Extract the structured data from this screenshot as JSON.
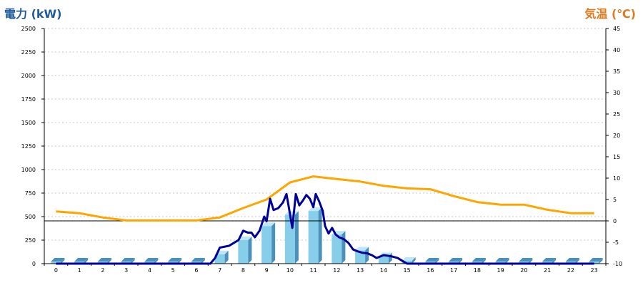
{
  "titles": {
    "left": "電力 (kW)",
    "right": "気温 (℃)"
  },
  "colors": {
    "left_title": "#1f5a99",
    "right_title": "#e07a1f",
    "bar": "#87ceeb",
    "bar_side": "#4a90b8",
    "bar_top": "#bfe6f7",
    "power_line": "#000099",
    "temp_line": "#ffa500",
    "grid": "#c8c8c8",
    "ref_line": "#000000"
  },
  "chart_data": {
    "type": "bar",
    "categories": [
      "0",
      "1",
      "2",
      "3",
      "4",
      "5",
      "6",
      "7",
      "8",
      "9",
      "10",
      "11",
      "12",
      "13",
      "14",
      "15",
      "16",
      "17",
      "18",
      "19",
      "20",
      "21",
      "22",
      "23"
    ],
    "left_axis": {
      "min": 0,
      "max": 2500,
      "ticks": [
        0,
        250,
        500,
        750,
        1000,
        1250,
        1500,
        1750,
        2000,
        2250,
        2500
      ]
    },
    "right_axis": {
      "min": -10,
      "max": 45,
      "ticks": [
        -10,
        -5,
        0,
        5,
        10,
        15,
        20,
        25,
        30,
        35,
        40,
        45
      ]
    },
    "grid": "horizontal-dotted",
    "reference_line_temp": 0,
    "bars": {
      "axis": "left",
      "values": [
        0,
        0,
        0,
        0,
        0,
        0,
        0,
        100,
        250,
        400,
        520,
        560,
        310,
        140,
        80,
        30,
        0,
        0,
        0,
        0,
        0,
        0,
        0,
        0
      ]
    },
    "power_line": {
      "axis": "left",
      "points": [
        [
          0,
          0
        ],
        [
          1,
          0
        ],
        [
          2,
          0
        ],
        [
          3,
          0
        ],
        [
          4,
          0
        ],
        [
          5,
          0
        ],
        [
          6,
          0
        ],
        [
          6.6,
          0
        ],
        [
          6.8,
          60
        ],
        [
          7.0,
          170
        ],
        [
          7.2,
          180
        ],
        [
          7.4,
          190
        ],
        [
          7.6,
          220
        ],
        [
          7.8,
          250
        ],
        [
          8.0,
          350
        ],
        [
          8.2,
          330
        ],
        [
          8.35,
          330
        ],
        [
          8.5,
          280
        ],
        [
          8.7,
          350
        ],
        [
          8.9,
          500
        ],
        [
          9.0,
          450
        ],
        [
          9.15,
          690
        ],
        [
          9.3,
          570
        ],
        [
          9.5,
          590
        ],
        [
          9.7,
          650
        ],
        [
          9.85,
          740
        ],
        [
          9.95,
          600
        ],
        [
          10.1,
          380
        ],
        [
          10.25,
          740
        ],
        [
          10.4,
          620
        ],
        [
          10.55,
          670
        ],
        [
          10.7,
          730
        ],
        [
          10.85,
          690
        ],
        [
          11.0,
          600
        ],
        [
          11.1,
          740
        ],
        [
          11.25,
          660
        ],
        [
          11.4,
          560
        ],
        [
          11.5,
          400
        ],
        [
          11.65,
          320
        ],
        [
          11.8,
          380
        ],
        [
          11.95,
          310
        ],
        [
          12.1,
          280
        ],
        [
          12.3,
          260
        ],
        [
          12.5,
          220
        ],
        [
          12.7,
          150
        ],
        [
          12.9,
          130
        ],
        [
          13.1,
          115
        ],
        [
          13.3,
          110
        ],
        [
          13.5,
          90
        ],
        [
          13.7,
          60
        ],
        [
          14.0,
          90
        ],
        [
          14.3,
          80
        ],
        [
          14.6,
          60
        ],
        [
          14.8,
          30
        ],
        [
          15.0,
          0
        ],
        [
          16,
          0
        ],
        [
          17,
          0
        ],
        [
          18,
          0
        ],
        [
          19,
          0
        ],
        [
          20,
          0
        ],
        [
          21,
          0
        ],
        [
          22,
          0
        ],
        [
          23,
          0
        ]
      ]
    },
    "temperature": {
      "axis": "right",
      "values": [
        2.2,
        1.8,
        0.8,
        0.1,
        0.1,
        0.1,
        0.1,
        0.8,
        3.0,
        5.0,
        9.0,
        10.4,
        9.8,
        9.2,
        8.2,
        7.6,
        7.4,
        5.8,
        4.4,
        3.8,
        3.8,
        2.6,
        1.8,
        1.8
      ]
    }
  }
}
